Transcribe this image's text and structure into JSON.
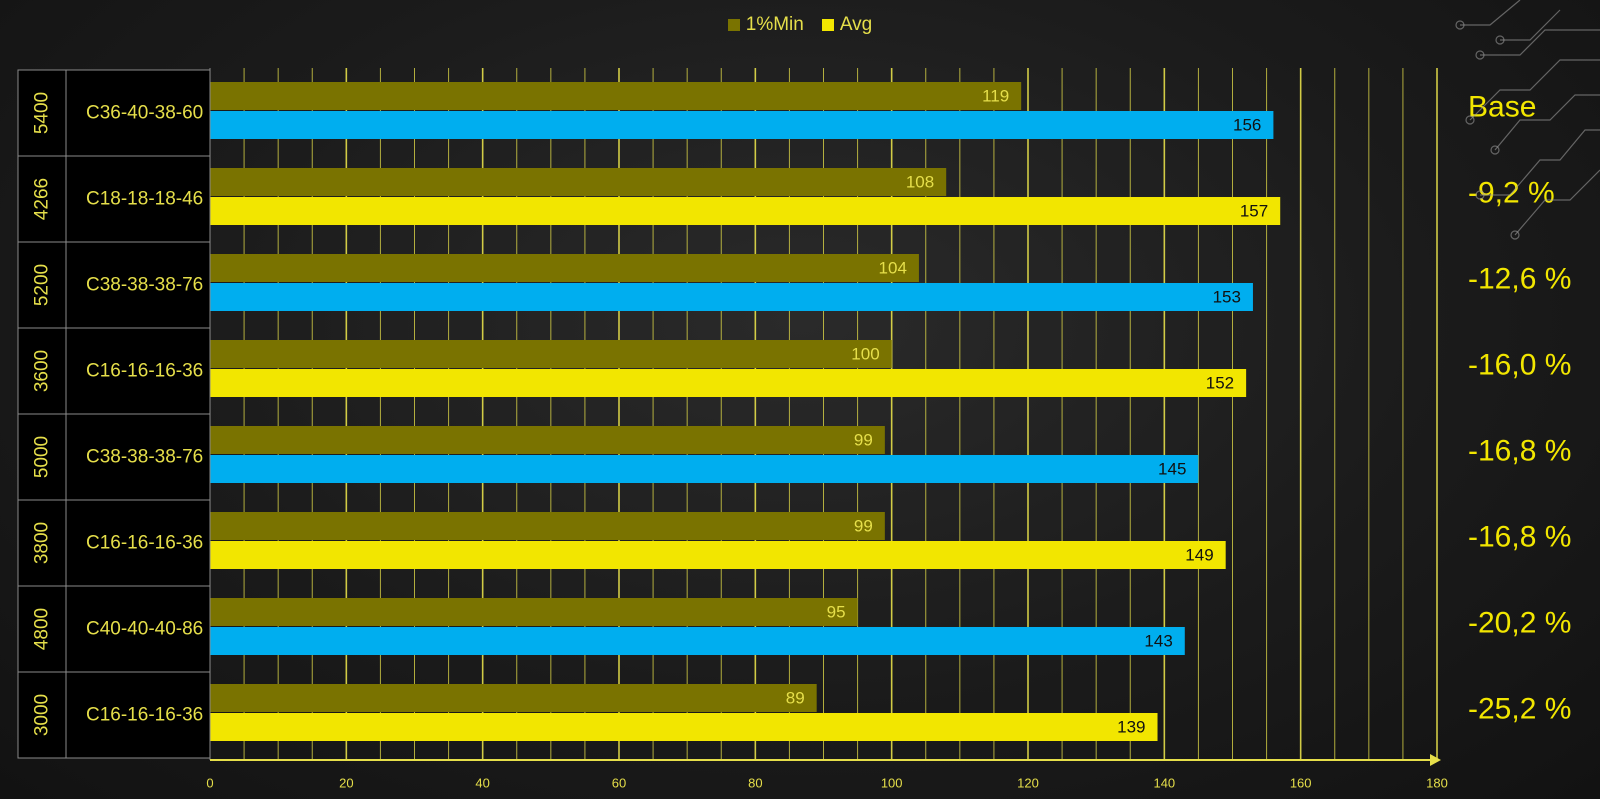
{
  "chart_data": {
    "type": "bar",
    "orientation": "horizontal",
    "legend": [
      {
        "name": "1%Min",
        "color": "#7a7300"
      },
      {
        "name": "Avg",
        "color": "#f2e600"
      }
    ],
    "legend_position": "top-center",
    "categories": [
      {
        "speed": "5400",
        "timing": "C36-40-38-60",
        "min": 119,
        "avg": 156,
        "avg_color": "#00aeef",
        "delta": "Base"
      },
      {
        "speed": "4266",
        "timing": "C18-18-18-46",
        "min": 108,
        "avg": 157,
        "avg_color": "#f2e600",
        "delta": "-9,2 %"
      },
      {
        "speed": "5200",
        "timing": "C38-38-38-76",
        "min": 104,
        "avg": 153,
        "avg_color": "#00aeef",
        "delta": "-12,6 %"
      },
      {
        "speed": "3600",
        "timing": "C16-16-16-36",
        "min": 100,
        "avg": 152,
        "avg_color": "#f2e600",
        "delta": "-16,0 %"
      },
      {
        "speed": "5000",
        "timing": "C38-38-38-76",
        "min": 99,
        "avg": 145,
        "avg_color": "#00aeef",
        "delta": "-16,8 %"
      },
      {
        "speed": "3800",
        "timing": "C16-16-16-36",
        "min": 99,
        "avg": 149,
        "avg_color": "#f2e600",
        "delta": "-16,8 %"
      },
      {
        "speed": "4800",
        "timing": "C40-40-40-86",
        "min": 95,
        "avg": 143,
        "avg_color": "#00aeef",
        "delta": "-20,2 %"
      },
      {
        "speed": "3000",
        "timing": "C16-16-16-36",
        "min": 89,
        "avg": 139,
        "avg_color": "#f2e600",
        "delta": "-25,2 %"
      }
    ],
    "xlim": [
      0,
      180
    ],
    "xticks": [
      "0",
      "20",
      "40",
      "60",
      "80",
      "100",
      "120",
      "140",
      "160",
      "180"
    ],
    "grid": true,
    "colors": {
      "min_bar": "#7a7300",
      "grid": "#e6df4a",
      "label": "#e6df4a",
      "delta_text": "#f2e600",
      "row_border": "#8a8a8a"
    }
  }
}
